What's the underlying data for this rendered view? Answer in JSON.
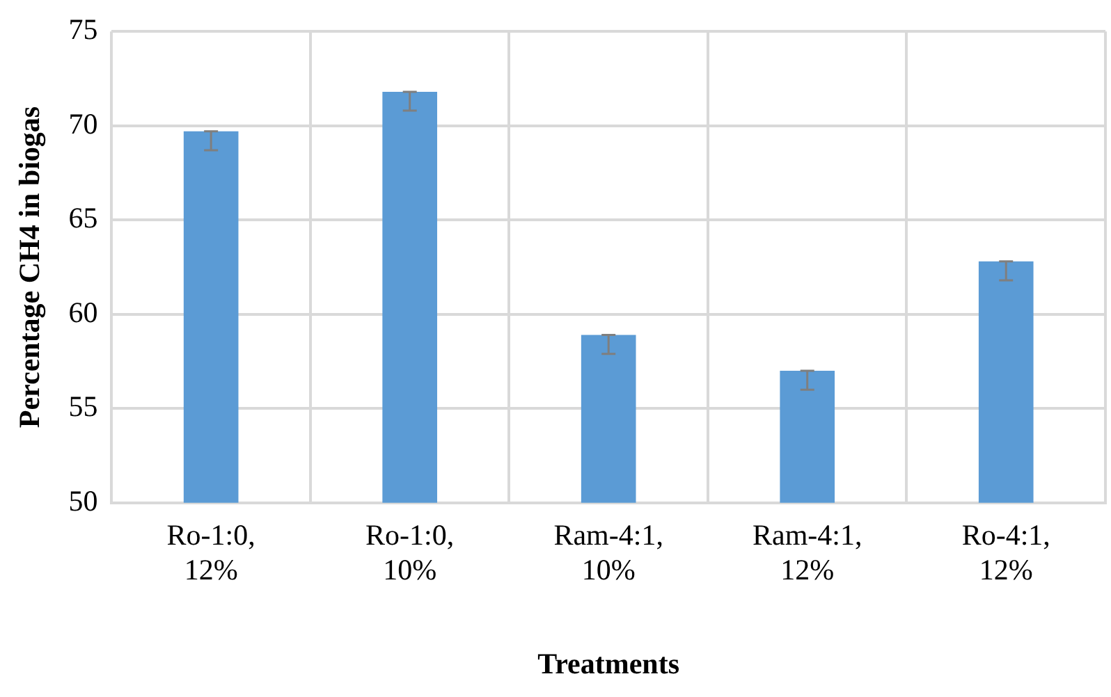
{
  "chart_data": {
    "type": "bar",
    "xlabel": "Treatments",
    "ylabel": "Percentage CH4 in biogas",
    "categories": [
      "Ro-1:0, 12%",
      "Ro-1:0, 10%",
      "Ram-4:1, 10%",
      "Ram-4:1, 12%",
      "Ro-4:1, 12%"
    ],
    "values": [
      69.7,
      71.8,
      58.9,
      57.0,
      62.8
    ],
    "errors": [
      [
        68.7,
        69.7
      ],
      [
        70.8,
        71.8
      ],
      [
        57.9,
        58.9
      ],
      [
        56.0,
        57.0
      ],
      [
        61.8,
        62.8
      ]
    ],
    "color": "#5b9bd5",
    "ylim": [
      50,
      75
    ],
    "yticks": [
      50,
      55,
      60,
      65,
      70,
      75
    ],
    "grid": true,
    "legend": false
  }
}
